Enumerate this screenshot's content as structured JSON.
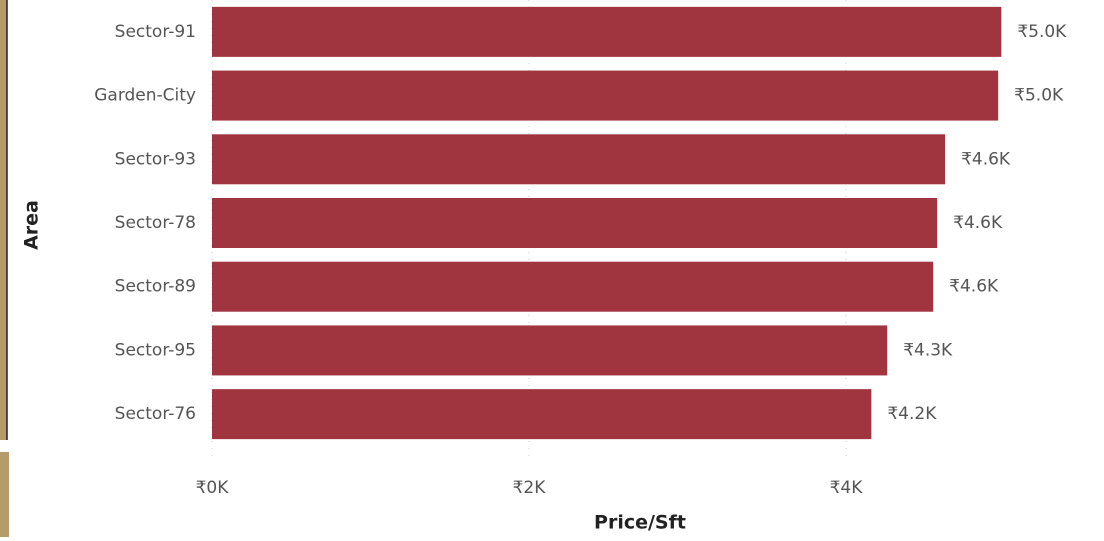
{
  "chart_data": {
    "type": "bar",
    "orientation": "horizontal",
    "x_label": "Price/Sft",
    "y_label": "Area",
    "categories": [
      "Sector-91",
      "Garden-City",
      "Sector-93",
      "Sector-78",
      "Sector-89",
      "Sector-95",
      "Sector-76"
    ],
    "values": [
      4980,
      4960,
      4625,
      4575,
      4550,
      4260,
      4160
    ],
    "value_labels": [
      "₹5.0K",
      "₹5.0K",
      "₹4.6K",
      "₹4.6K",
      "₹4.6K",
      "₹4.3K",
      "₹4.2K"
    ],
    "color": "#a0343f",
    "xlim": [
      0,
      5000
    ],
    "xticks": [
      {
        "value": 0,
        "label": "₹0K"
      },
      {
        "value": 2000,
        "label": "₹2K"
      },
      {
        "value": 4000,
        "label": "₹4K"
      }
    ],
    "grid": true
  }
}
